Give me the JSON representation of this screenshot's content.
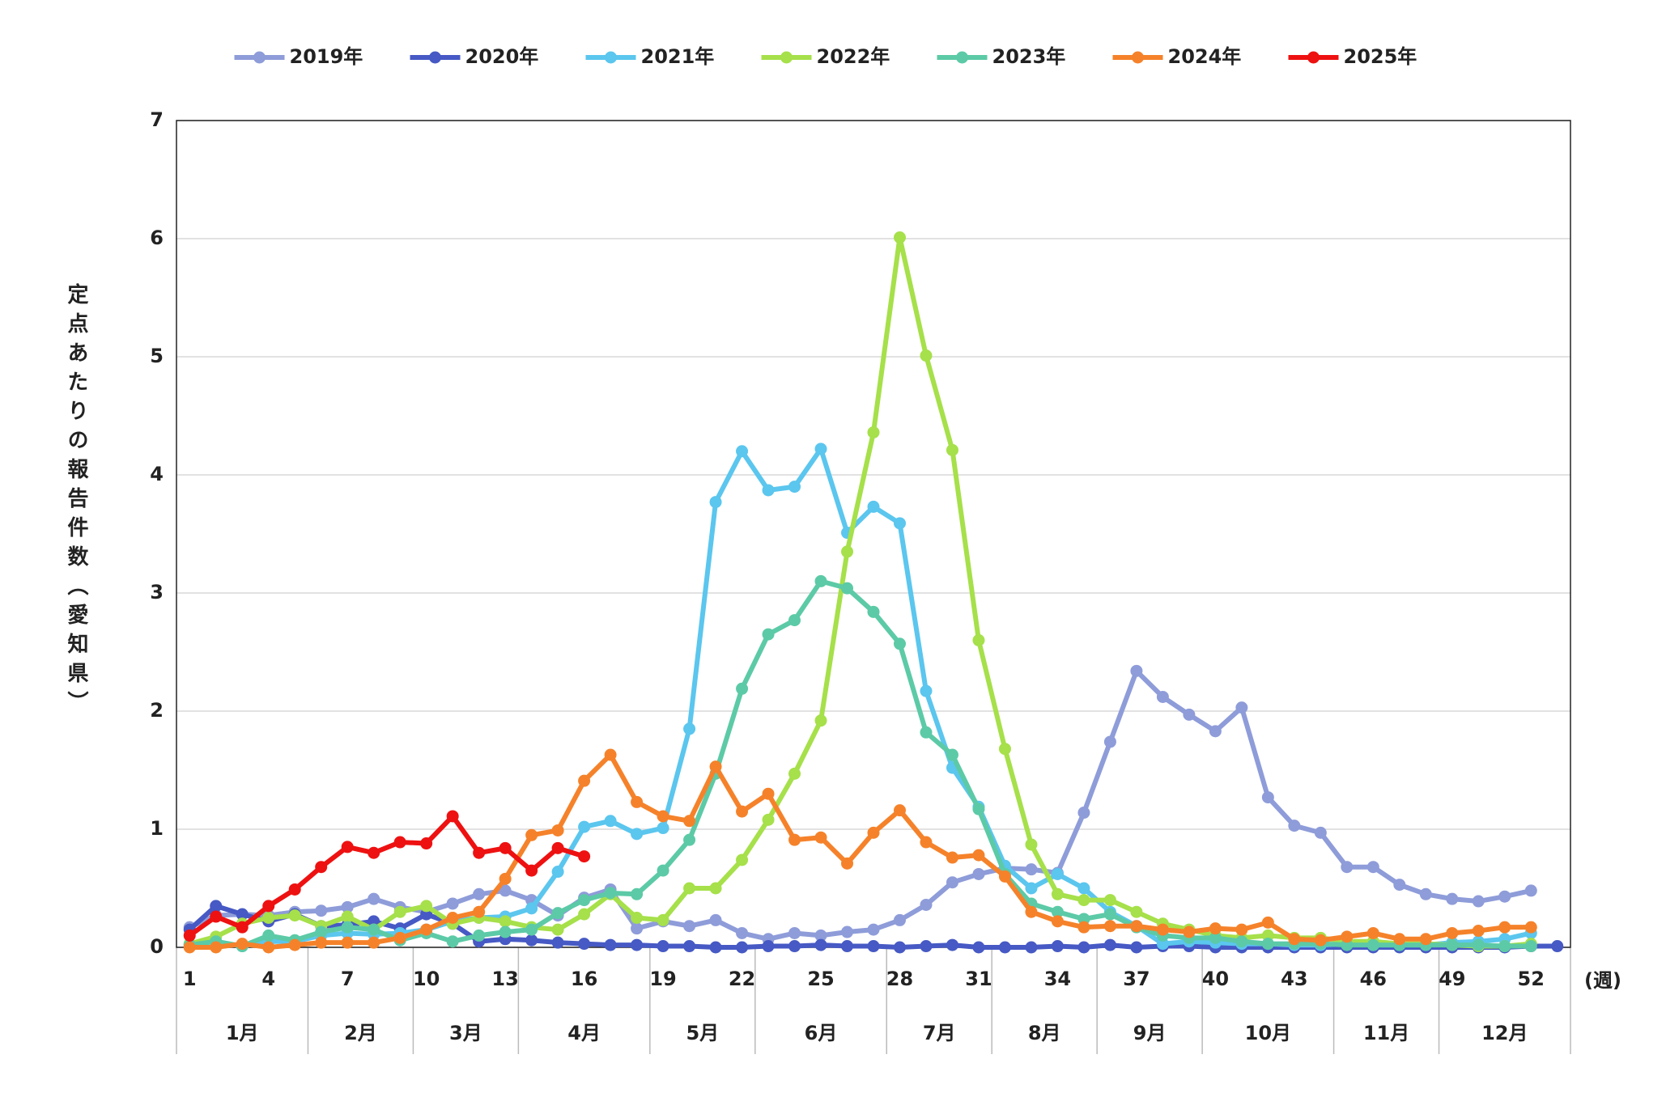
{
  "chart_data": {
    "type": "line",
    "y_label": "定点あたりの報告件数（愛知県）",
    "x_unit": "(週)",
    "x": [
      1,
      2,
      3,
      4,
      5,
      6,
      7,
      8,
      9,
      10,
      11,
      12,
      13,
      14,
      15,
      16,
      17,
      18,
      19,
      20,
      21,
      22,
      23,
      24,
      25,
      26,
      27,
      28,
      29,
      30,
      31,
      32,
      33,
      34,
      35,
      36,
      37,
      38,
      39,
      40,
      41,
      42,
      43,
      44,
      45,
      46,
      47,
      48,
      49,
      50,
      51,
      52,
      53
    ],
    "xlim": [
      0.5,
      53.5
    ],
    "xticks": [
      1,
      4,
      7,
      10,
      13,
      16,
      19,
      22,
      25,
      28,
      31,
      34,
      37,
      40,
      43,
      46,
      49,
      52
    ],
    "ylim": [
      0,
      7
    ],
    "yticks": [
      0,
      1,
      2,
      3,
      4,
      5,
      6,
      7
    ],
    "grid": true,
    "months": [
      "1月",
      "2月",
      "3月",
      "4月",
      "5月",
      "6月",
      "7月",
      "8月",
      "9月",
      "10月",
      "11月",
      "12月"
    ],
    "month_edges": [
      0.5,
      5.5,
      9.5,
      13.5,
      18.5,
      22.5,
      27.5,
      31.5,
      35.5,
      39.5,
      44.5,
      48.5,
      53.5
    ],
    "series": [
      {
        "name": "2019年",
        "color": "#8e9cd9",
        "values": [
          0.17,
          0.27,
          0.28,
          0.27,
          0.3,
          0.31,
          0.34,
          0.41,
          0.34,
          0.3,
          0.37,
          0.45,
          0.48,
          0.4,
          0.27,
          0.42,
          0.49,
          0.16,
          0.22,
          0.18,
          0.23,
          0.12,
          0.07,
          0.12,
          0.1,
          0.13,
          0.15,
          0.23,
          0.36,
          0.55,
          0.62,
          0.67,
          0.66,
          0.63,
          1.14,
          1.74,
          2.34,
          2.12,
          1.97,
          1.83,
          2.03,
          1.27,
          1.03,
          0.97,
          0.68,
          0.68,
          0.53,
          0.45,
          0.41,
          0.39,
          0.43,
          0.48,
          null
        ]
      },
      {
        "name": "2020年",
        "color": "#4659c4",
        "values": [
          0.15,
          0.35,
          0.28,
          0.22,
          0.28,
          0.18,
          0.19,
          0.22,
          0.16,
          0.28,
          0.2,
          0.05,
          0.07,
          0.06,
          0.04,
          0.03,
          0.02,
          0.02,
          0.01,
          0.01,
          0,
          0,
          0.01,
          0.01,
          0.02,
          0.01,
          0.01,
          0,
          0.01,
          0.02,
          0,
          0,
          0,
          0.01,
          0,
          0.02,
          0,
          0.01,
          0.01,
          0,
          0,
          0,
          0,
          0,
          0,
          0,
          0,
          0,
          0,
          0,
          0,
          0.01,
          0.01
        ]
      },
      {
        "name": "2021年",
        "color": "#5bc6ee",
        "values": [
          0.02,
          0.05,
          0.01,
          0.05,
          0.05,
          0.1,
          0.12,
          0.11,
          0.12,
          0.15,
          0.22,
          0.25,
          0.26,
          0.33,
          0.64,
          1.02,
          1.07,
          0.96,
          1.01,
          1.85,
          3.77,
          4.2,
          3.87,
          3.9,
          4.22,
          3.51,
          3.73,
          3.59,
          2.17,
          1.52,
          1.19,
          0.69,
          0.5,
          0.62,
          0.5,
          0.3,
          0.18,
          0.03,
          0.05,
          0.04,
          0.03,
          0.03,
          0.02,
          0.02,
          0.03,
          0.02,
          0.02,
          0.02,
          0.04,
          0.05,
          0.07,
          0.12,
          null
        ]
      },
      {
        "name": "2022年",
        "color": "#a6e04a",
        "values": [
          0.03,
          0.09,
          0.2,
          0.25,
          0.27,
          0.18,
          0.26,
          0.15,
          0.3,
          0.35,
          0.2,
          0.25,
          0.22,
          0.17,
          0.15,
          0.28,
          0.45,
          0.25,
          0.23,
          0.5,
          0.5,
          0.74,
          1.08,
          1.47,
          1.92,
          3.35,
          4.36,
          6.01,
          5.01,
          4.21,
          2.6,
          1.68,
          0.87,
          0.45,
          0.4,
          0.4,
          0.3,
          0.2,
          0.15,
          0.1,
          0.08,
          0.1,
          0.08,
          0.08,
          0.05,
          0.05,
          0.03,
          0.03,
          0.02,
          0.01,
          0.01,
          0.03,
          null
        ]
      },
      {
        "name": "2023年",
        "color": "#5ccaa6",
        "values": [
          0.02,
          0.05,
          0.01,
          0.1,
          0.06,
          0.13,
          0.17,
          0.15,
          0.06,
          0.12,
          0.05,
          0.1,
          0.13,
          0.15,
          0.29,
          0.4,
          0.46,
          0.45,
          0.65,
          0.91,
          1.47,
          2.19,
          2.65,
          2.77,
          3.1,
          3.04,
          2.84,
          2.57,
          1.82,
          1.63,
          1.17,
          0.62,
          0.37,
          0.3,
          0.24,
          0.28,
          0.17,
          0.1,
          0.08,
          0.08,
          0.05,
          0.03,
          0.03,
          0.03,
          0.02,
          0.02,
          0.02,
          0.02,
          0.02,
          0.02,
          0.01,
          0.01,
          null
        ]
      },
      {
        "name": "2024年",
        "color": "#f5822a",
        "values": [
          0,
          0,
          0.03,
          0,
          0.02,
          0.04,
          0.04,
          0.04,
          0.08,
          0.15,
          0.25,
          0.3,
          0.58,
          0.95,
          0.99,
          1.41,
          1.63,
          1.23,
          1.11,
          1.07,
          1.53,
          1.15,
          1.3,
          0.91,
          0.93,
          0.71,
          0.97,
          1.16,
          0.89,
          0.76,
          0.78,
          0.6,
          0.3,
          0.22,
          0.17,
          0.18,
          0.18,
          0.15,
          0.13,
          0.16,
          0.15,
          0.21,
          0.07,
          0.06,
          0.09,
          0.12,
          0.07,
          0.07,
          0.12,
          0.14,
          0.17,
          0.17,
          null
        ]
      },
      {
        "name": "2025年",
        "color": "#ee1111",
        "values": [
          0.1,
          0.26,
          0.17,
          0.35,
          0.49,
          0.68,
          0.85,
          0.8,
          0.89,
          0.88,
          1.11,
          0.8,
          0.84,
          0.65,
          0.84,
          0.77,
          null,
          null,
          null,
          null,
          null,
          null,
          null,
          null,
          null,
          null,
          null,
          null,
          null,
          null,
          null,
          null,
          null,
          null,
          null,
          null,
          null,
          null,
          null,
          null,
          null,
          null,
          null,
          null,
          null,
          null,
          null,
          null,
          null,
          null,
          null,
          null,
          null
        ]
      }
    ]
  }
}
